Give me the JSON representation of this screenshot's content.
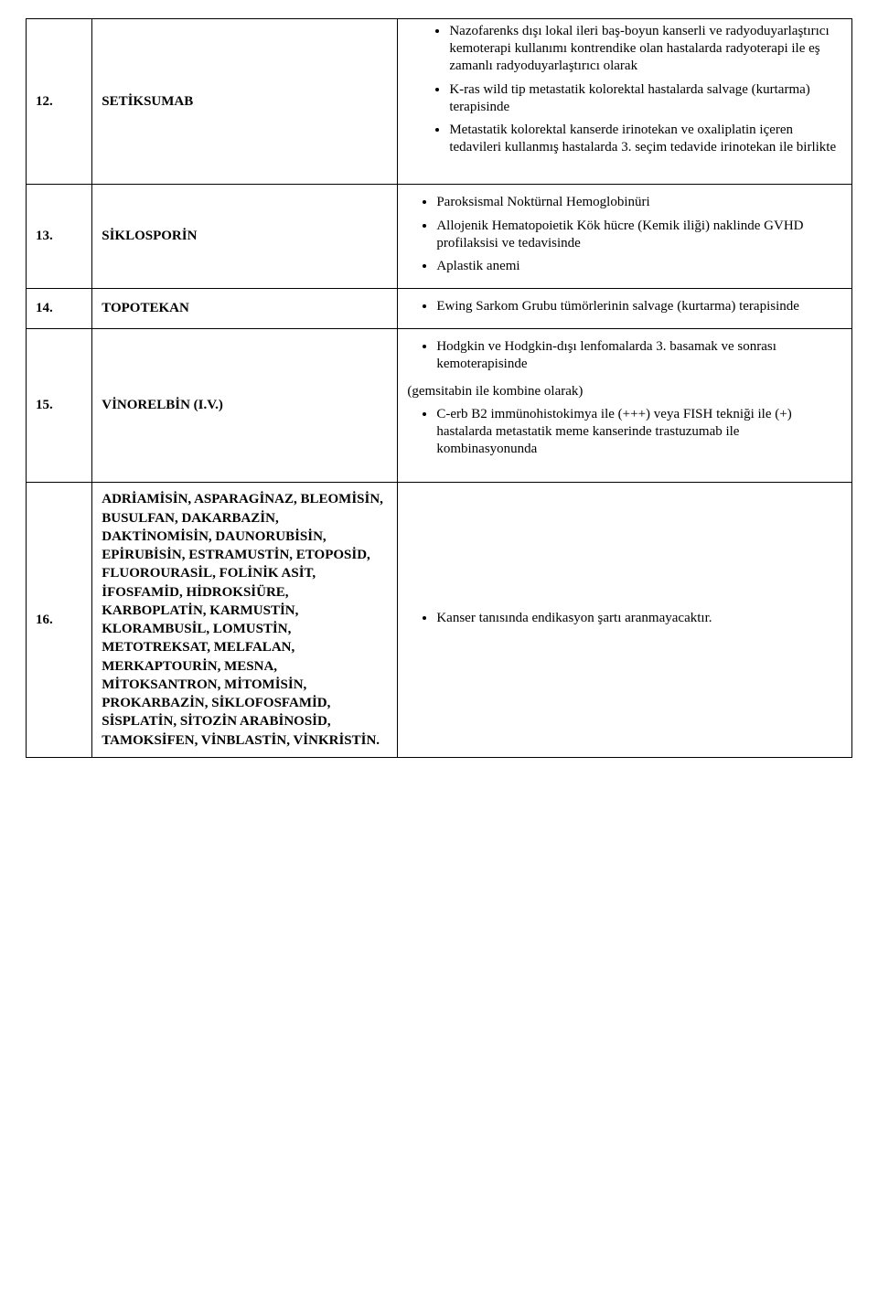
{
  "rows": [
    {
      "num": "12.",
      "name": "SETİKSUMAB",
      "bullets": [
        "Nazofarenks dışı lokal ileri baş-boyun kanserli ve radyoduyarlaştırıcı kemoterapi kullanımı kontrendike olan hastalarda radyoterapi ile eş zamanlı radyoduyarlaştırıcı olarak",
        "K-ras wild tip metastatik kolorektal hastalarda salvage (kurtarma) terapisinde",
        "Metastatik kolorektal kanserde irinotekan ve oxaliplatin içeren tedavileri kullanmış hastalarda 3. seçim tedavide irinotekan ile birlikte"
      ]
    },
    {
      "num": "13.",
      "name": "SİKLOSPORİN",
      "bullets": [
        "Paroksismal Noktürnal Hemoglobinüri",
        "Allojenik Hematopoietik Kök hücre (Kemik iliği) naklinde GVHD profilaksisi ve tedavisinde",
        "Aplastik anemi"
      ]
    },
    {
      "num": "14.",
      "name": "TOPOTEKAN",
      "bullets": [
        "Ewing Sarkom Grubu tümörlerinin salvage (kurtarma) terapisinde"
      ]
    },
    {
      "num": "15.",
      "name": "VİNORELBİN (I.V.)",
      "bullets_top": [
        "Hodgkin ve Hodgkin-dışı lenfomalarda 3. basamak ve sonrası kemoterapisinde"
      ],
      "note": "(gemsitabin ile kombine olarak)",
      "bullets_bottom": [
        "C-erb B2 immünohistokimya ile (+++) veya FISH tekniği ile (+) hastalarda metastatik meme kanserinde trastuzumab ile kombinasyonunda"
      ]
    },
    {
      "num": "16.",
      "name": "ADRİAMİSİN, ASPARAGİNAZ, BLEOMİSİN, BUSULFAN, DAKARBAZİN, DAKTİNOMİSİN, DAUNORUBİSİN, EPİRUBİSİN, ESTRAMUSTİN, ETOPOSİD, FLUOROURASİL, FOLİNİK ASİT, İFOSFAMİD, HİDROKSİÜRE, KARBOPLATİN, KARMUSTİN, KLORAMBUSİL, LOMUSTİN, METOTREKSAT, MELFALAN, MERKAPTOURİN, MESNA, MİTOKSANTRON, MİTOMİSİN, PROKARBAZİN, SİKLOFOSFAMİD, SİSPLATİN, SİTOZİN ARABİNOSİD, TAMOKSİFEN, VİNBLASTİN, VİNKRİSTİN.",
      "bullets": [
        "Kanser tanısında endikasyon şartı aranmayacaktır."
      ]
    }
  ]
}
